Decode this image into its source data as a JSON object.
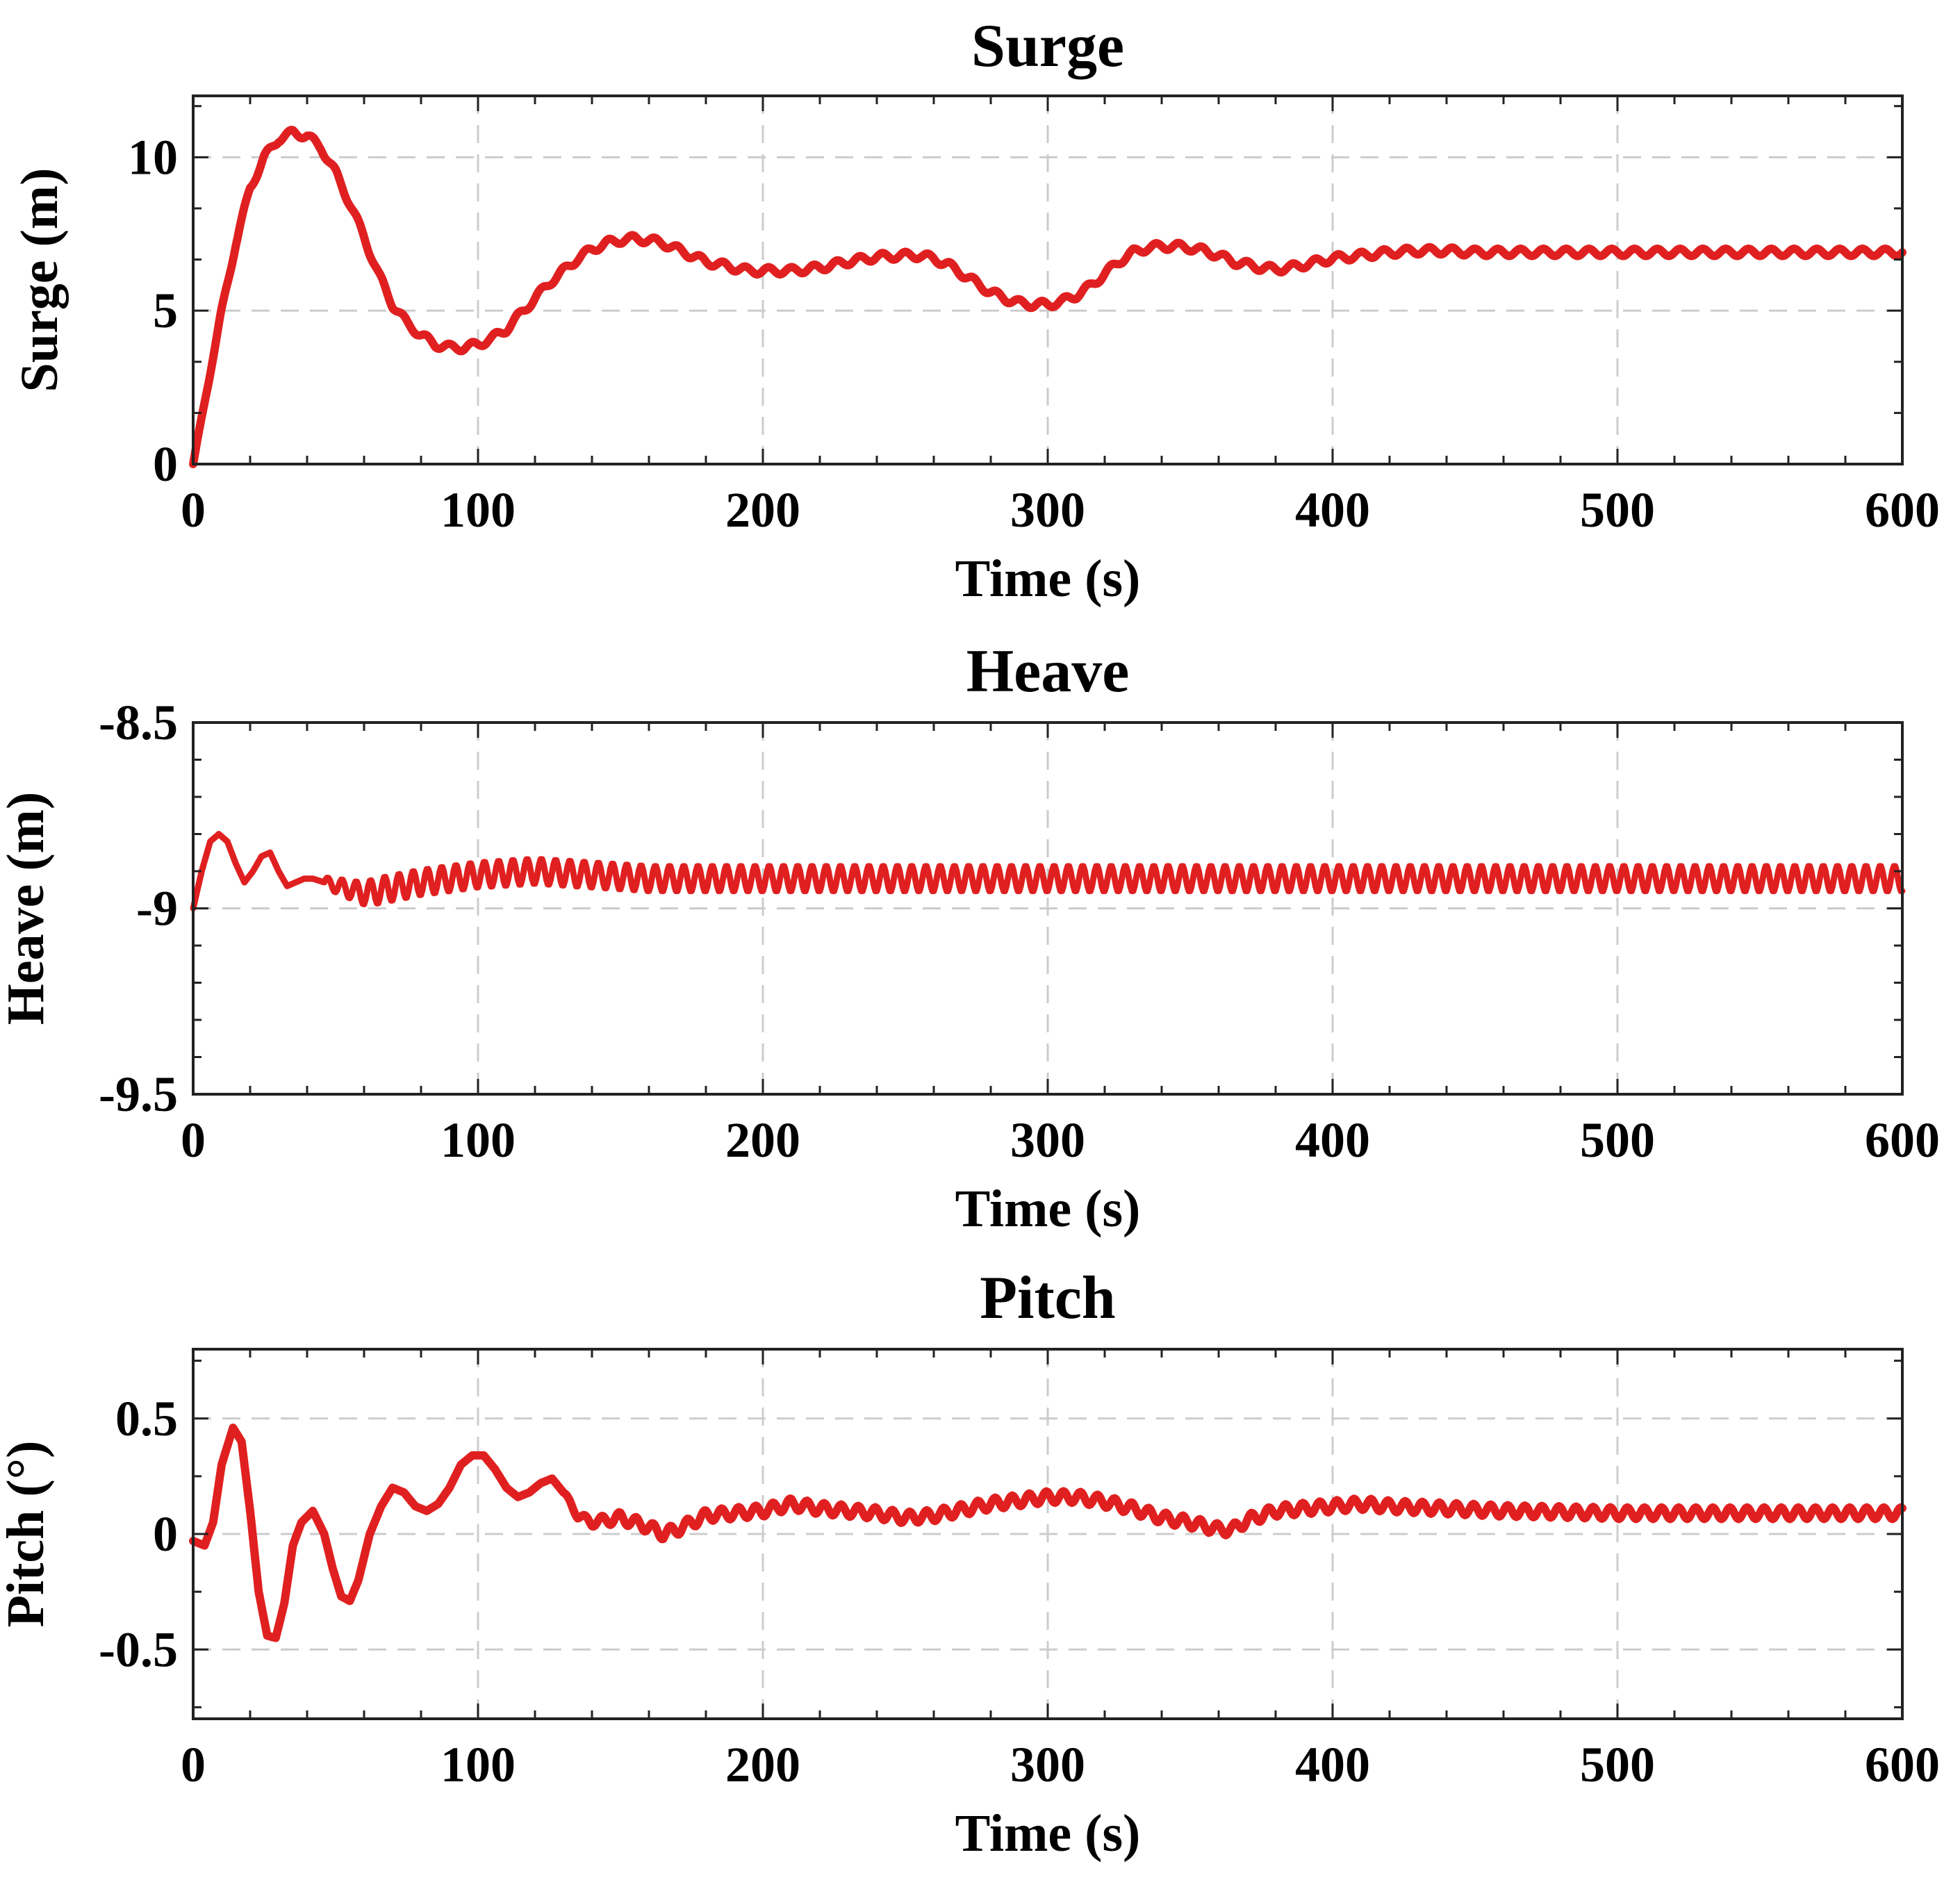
{
  "chart_data": [
    {
      "type": "line",
      "title": "Surge",
      "xlabel": "Time (s)",
      "ylabel": "Surge (m)",
      "xlim": [
        0,
        600
      ],
      "ylim": [
        0,
        12
      ],
      "xticks": [
        0,
        100,
        200,
        300,
        400,
        500,
        600
      ],
      "xtick_labels": [
        "0",
        "100",
        "200",
        "300",
        "400",
        "500",
        "600"
      ],
      "yticks": [
        0,
        5,
        10
      ],
      "ytick_labels": [
        "0",
        "5",
        "10"
      ],
      "grid": true,
      "color": "#e02020",
      "series": [
        {
          "name": "Surge",
          "x": [
            0,
            5,
            10,
            15,
            20,
            25,
            30,
            35,
            40,
            45,
            50,
            55,
            60,
            65,
            70,
            75,
            80,
            85,
            90,
            95,
            100,
            105,
            110,
            115,
            120,
            125,
            130,
            135,
            140,
            145,
            150,
            155,
            160,
            165,
            170,
            175,
            180,
            185,
            190,
            195,
            200,
            210,
            220,
            230,
            240,
            250,
            255,
            260,
            265,
            270,
            275,
            280,
            285,
            290,
            295,
            300,
            305,
            310,
            315,
            320,
            325,
            330,
            335,
            340,
            345,
            350,
            355,
            360,
            365,
            370,
            375,
            380,
            385,
            390,
            395,
            400,
            405,
            410,
            420,
            430,
            440,
            450,
            460,
            470,
            480,
            490,
            500,
            520,
            540,
            560,
            580,
            600
          ],
          "y": [
            0,
            2.5,
            5.0,
            7.2,
            9.0,
            10.0,
            10.6,
            10.8,
            10.7,
            10.3,
            9.5,
            8.5,
            7.4,
            6.2,
            5.2,
            4.6,
            4.2,
            3.9,
            3.8,
            3.8,
            3.9,
            4.1,
            4.4,
            4.9,
            5.4,
            5.9,
            6.3,
            6.7,
            7.0,
            7.2,
            7.3,
            7.35,
            7.3,
            7.2,
            7.0,
            6.8,
            6.6,
            6.5,
            6.4,
            6.3,
            6.3,
            6.3,
            6.4,
            6.6,
            6.75,
            6.8,
            6.8,
            6.7,
            6.5,
            6.2,
            5.9,
            5.6,
            5.4,
            5.25,
            5.2,
            5.2,
            5.3,
            5.5,
            5.8,
            6.2,
            6.6,
            6.9,
            7.05,
            7.1,
            7.1,
            7.05,
            6.95,
            6.8,
            6.6,
            6.5,
            6.4,
            6.35,
            6.4,
            6.5,
            6.6,
            6.7,
            6.75,
            6.8,
            6.9,
            6.95,
            6.95,
            6.9,
            6.9,
            6.9,
            6.9,
            6.9,
            6.9,
            6.9,
            6.9,
            6.9,
            6.9,
            6.9
          ],
          "oscillation": {
            "amplitude": 0.12,
            "period": 8
          }
        }
      ]
    },
    {
      "type": "line",
      "title": "Heave",
      "xlabel": "Time (s)",
      "ylabel": "Heave (m)",
      "xlim": [
        0,
        600
      ],
      "ylim": [
        -9.5,
        -8.5
      ],
      "xticks": [
        0,
        100,
        200,
        300,
        400,
        500,
        600
      ],
      "xtick_labels": [
        "0",
        "100",
        "200",
        "300",
        "400",
        "500",
        "600"
      ],
      "yticks": [
        -9.5,
        -9,
        -8.5
      ],
      "ytick_labels": [
        "-9.5",
        "-9",
        "-8.5"
      ],
      "grid": true,
      "color": "#e02020",
      "series": [
        {
          "name": "Heave",
          "x": [
            0,
            3,
            6,
            9,
            12,
            15,
            18,
            21,
            24,
            27,
            30,
            33,
            36,
            39,
            42,
            46,
            60,
            80,
            100,
            120,
            140,
            160,
            200,
            300,
            400,
            500,
            600
          ],
          "y": [
            -9.0,
            -8.9,
            -8.82,
            -8.8,
            -8.82,
            -8.88,
            -8.93,
            -8.9,
            -8.86,
            -8.85,
            -8.9,
            -8.94,
            -8.93,
            -8.92,
            -8.92,
            -8.93,
            -8.96,
            -8.93,
            -8.91,
            -8.9,
            -8.91,
            -8.92,
            -8.92,
            -8.92,
            -8.92,
            -8.92,
            -8.92
          ],
          "oscillation": {
            "start": 46,
            "amplitude": 0.035,
            "period": 5
          }
        }
      ]
    },
    {
      "type": "line",
      "title": "Pitch",
      "xlabel": "Time (s)",
      "ylabel": "Pitch (°)",
      "xlim": [
        0,
        600
      ],
      "ylim": [
        -0.8,
        0.8
      ],
      "xticks": [
        0,
        100,
        200,
        300,
        400,
        500,
        600
      ],
      "xtick_labels": [
        "0",
        "100",
        "200",
        "300",
        "400",
        "500",
        "600"
      ],
      "yticks": [
        -0.5,
        0,
        0.5
      ],
      "ytick_labels": [
        "-0.5",
        "0",
        "0.5"
      ],
      "grid": true,
      "color": "#e02020",
      "series": [
        {
          "name": "Pitch",
          "x": [
            0,
            4,
            7,
            10,
            14,
            17,
            20,
            23,
            26,
            29,
            32,
            35,
            38,
            42,
            46,
            49,
            52,
            55,
            58,
            62,
            66,
            70,
            74,
            78,
            82,
            86,
            90,
            94,
            98,
            102,
            106,
            110,
            114,
            118,
            122,
            126,
            130,
            135,
            140,
            150,
            160,
            165,
            170,
            180,
            190,
            200,
            210,
            220,
            240,
            250,
            260,
            280,
            300,
            310,
            320,
            330,
            340,
            350,
            360,
            365,
            370,
            380,
            390,
            400,
            410,
            420,
            440,
            460,
            500,
            600
          ],
          "y": [
            -0.03,
            -0.05,
            0.05,
            0.3,
            0.46,
            0.4,
            0.1,
            -0.25,
            -0.44,
            -0.45,
            -0.3,
            -0.05,
            0.05,
            0.1,
            0.0,
            -0.15,
            -0.27,
            -0.29,
            -0.2,
            0.0,
            0.12,
            0.2,
            0.18,
            0.12,
            0.1,
            0.13,
            0.2,
            0.3,
            0.34,
            0.34,
            0.28,
            0.2,
            0.16,
            0.18,
            0.22,
            0.24,
            0.18,
            0.08,
            0.05,
            0.07,
            0.03,
            0.0,
            0.02,
            0.08,
            0.09,
            0.1,
            0.13,
            0.11,
            0.09,
            0.07,
            0.08,
            0.13,
            0.16,
            0.16,
            0.14,
            0.11,
            0.07,
            0.05,
            0.02,
            0.02,
            0.06,
            0.1,
            0.11,
            0.12,
            0.13,
            0.12,
            0.11,
            0.1,
            0.09,
            0.09
          ],
          "oscillation": {
            "start": 130,
            "amplitude": 0.025,
            "period": 6
          }
        }
      ]
    }
  ]
}
